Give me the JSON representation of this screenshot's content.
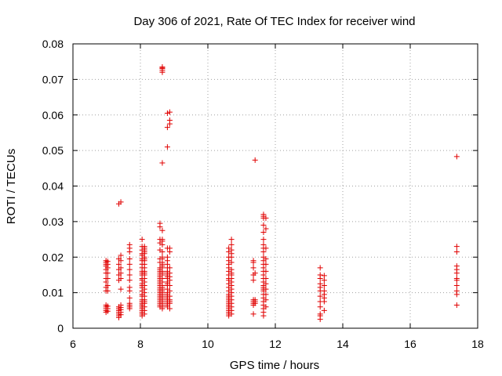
{
  "chart_data": {
    "type": "scatter",
    "title": "Day 306 of 2021, Rate Of TEC Index for receiver wind",
    "xlabel": "GPS time / hours",
    "ylabel": "ROTI / TECUs",
    "xlim": [
      6,
      18
    ],
    "ylim": [
      0,
      0.08
    ],
    "xticks": [
      6,
      8,
      10,
      12,
      14,
      16,
      18
    ],
    "yticks": [
      0,
      0.01,
      0.02,
      0.03,
      0.04,
      0.05,
      0.06,
      0.07,
      0.08
    ],
    "xtick_labels": [
      "6",
      "8",
      "10",
      "12",
      "14",
      "16",
      "18"
    ],
    "ytick_labels": [
      "0",
      "0.01",
      "0.02",
      "0.03",
      "0.04",
      "0.05",
      "0.06",
      "0.07",
      "0.08"
    ],
    "grid": true,
    "marker": "+",
    "color": "#e00000",
    "series": [
      {
        "x": [
          6.98,
          6.98,
          6.98,
          6.98,
          6.98,
          6.98,
          6.98,
          6.98,
          6.98,
          6.98,
          6.98,
          6.98,
          6.98,
          6.98,
          6.98,
          7.03,
          7.03,
          7.03,
          7.03,
          7.03,
          7.03,
          7.03,
          7.03,
          7.03,
          7.03,
          7.36,
          7.36,
          7.36,
          7.36,
          7.36,
          7.36,
          7.36,
          7.36,
          7.36,
          7.36,
          7.36,
          7.36,
          7.36,
          7.42,
          7.42,
          7.42,
          7.42,
          7.42,
          7.42,
          7.42,
          7.42,
          7.42,
          7.42,
          7.42,
          7.42,
          7.68,
          7.68,
          7.68,
          7.68,
          7.68,
          7.68,
          7.68,
          7.68,
          7.68,
          7.68,
          7.68,
          7.68,
          7.68,
          7.68,
          7.68,
          8.05,
          8.05,
          8.05,
          8.05,
          8.05,
          8.05,
          8.05,
          8.05,
          8.05,
          8.05,
          8.05,
          8.05,
          8.05,
          8.05,
          8.05,
          8.05,
          8.05,
          8.05,
          8.05,
          8.05,
          8.05,
          8.05,
          8.05,
          8.05,
          8.05,
          8.05,
          8.05,
          8.05,
          8.05,
          8.05,
          8.12,
          8.12,
          8.12,
          8.12,
          8.12,
          8.12,
          8.12,
          8.12,
          8.12,
          8.12,
          8.12,
          8.12,
          8.12,
          8.12,
          8.12,
          8.12,
          8.12,
          8.12,
          8.12,
          8.12,
          8.12,
          8.12,
          8.12,
          8.12,
          8.12,
          8.58,
          8.58,
          8.58,
          8.58,
          8.58,
          8.58,
          8.58,
          8.58,
          8.58,
          8.58,
          8.58,
          8.58,
          8.58,
          8.58,
          8.58,
          8.58,
          8.58,
          8.58,
          8.58,
          8.58,
          8.58,
          8.58,
          8.58,
          8.58,
          8.58,
          8.58,
          8.58,
          8.58,
          8.58,
          8.58,
          8.65,
          8.65,
          8.65,
          8.65,
          8.65,
          8.65,
          8.65,
          8.65,
          8.65,
          8.65,
          8.65,
          8.65,
          8.65,
          8.65,
          8.65,
          8.65,
          8.65,
          8.65,
          8.65,
          8.65,
          8.65,
          8.65,
          8.65,
          8.65,
          8.65,
          8.65,
          8.65,
          8.65,
          8.65,
          8.65,
          8.65,
          8.65,
          8.65,
          8.65,
          8.65,
          8.65,
          8.8,
          8.8,
          8.8,
          8.8,
          8.8,
          8.8,
          8.8,
          8.8,
          8.8,
          8.8,
          8.8,
          8.8,
          8.8,
          8.8,
          8.8,
          8.8,
          8.8,
          8.8,
          8.8,
          8.8,
          8.8,
          8.8,
          8.8,
          8.8,
          8.8,
          8.8,
          8.87,
          8.87,
          8.87,
          8.87,
          8.87,
          8.87,
          8.87,
          8.87,
          8.87,
          8.87,
          8.87,
          8.87,
          8.87,
          8.87,
          8.87,
          8.87,
          10.62,
          10.62,
          10.62,
          10.62,
          10.62,
          10.62,
          10.62,
          10.62,
          10.62,
          10.62,
          10.62,
          10.62,
          10.62,
          10.62,
          10.62,
          10.62,
          10.62,
          10.62,
          10.62,
          10.62,
          10.62,
          10.62,
          10.62,
          10.62,
          10.62,
          10.62,
          10.7,
          10.7,
          10.7,
          10.7,
          10.7,
          10.7,
          10.7,
          10.7,
          10.7,
          10.7,
          10.7,
          10.7,
          10.7,
          10.7,
          10.7,
          10.7,
          10.7,
          10.7,
          10.7,
          10.7,
          11.35,
          11.35,
          11.35,
          11.35,
          11.35,
          11.35,
          11.35,
          11.35,
          11.35,
          11.35,
          11.4,
          11.4,
          11.4,
          11.4,
          11.4,
          11.65,
          11.65,
          11.65,
          11.65,
          11.65,
          11.65,
          11.65,
          11.65,
          11.65,
          11.65,
          11.65,
          11.65,
          11.65,
          11.65,
          11.65,
          11.65,
          11.65,
          11.65,
          11.65,
          11.65,
          11.65,
          11.65,
          11.65,
          11.65,
          11.65,
          11.65,
          11.65,
          11.65,
          11.72,
          11.72,
          11.72,
          11.72,
          11.72,
          11.72,
          11.72,
          11.72,
          11.72,
          11.72,
          11.72,
          11.72,
          13.33,
          13.33,
          13.33,
          13.33,
          13.33,
          13.33,
          13.33,
          13.33,
          13.33,
          13.33,
          13.33,
          13.33,
          13.45,
          13.45,
          13.45,
          13.45,
          13.45,
          13.45,
          13.45,
          13.45,
          17.38,
          17.38,
          17.38,
          17.38,
          17.38,
          17.38,
          17.38,
          17.38,
          17.38,
          17.38,
          17.38,
          17.38
        ],
        "y": [
          0.0045,
          0.005,
          0.0055,
          0.006,
          0.0065,
          0.0105,
          0.0115,
          0.013,
          0.014,
          0.0155,
          0.0165,
          0.0175,
          0.018,
          0.0185,
          0.019,
          0.0048,
          0.0055,
          0.0062,
          0.0105,
          0.012,
          0.014,
          0.0155,
          0.017,
          0.018,
          0.0188,
          0.003,
          0.0035,
          0.004,
          0.0045,
          0.005,
          0.0055,
          0.006,
          0.0135,
          0.015,
          0.0165,
          0.018,
          0.0195,
          0.035,
          0.0038,
          0.0045,
          0.0052,
          0.0058,
          0.0065,
          0.011,
          0.014,
          0.0155,
          0.017,
          0.019,
          0.0205,
          0.0355,
          0.0055,
          0.006,
          0.0065,
          0.007,
          0.0085,
          0.0105,
          0.0115,
          0.0135,
          0.015,
          0.0165,
          0.018,
          0.0195,
          0.0215,
          0.0225,
          0.0235,
          0.0035,
          0.004,
          0.0045,
          0.005,
          0.0055,
          0.006,
          0.0065,
          0.007,
          0.0075,
          0.008,
          0.009,
          0.0095,
          0.0105,
          0.0115,
          0.012,
          0.0125,
          0.0135,
          0.014,
          0.015,
          0.0155,
          0.016,
          0.017,
          0.018,
          0.019,
          0.0195,
          0.0205,
          0.021,
          0.022,
          0.023,
          0.025,
          0.004,
          0.005,
          0.006,
          0.007,
          0.0075,
          0.008,
          0.009,
          0.01,
          0.011,
          0.012,
          0.013,
          0.014,
          0.015,
          0.0155,
          0.016,
          0.017,
          0.018,
          0.019,
          0.0195,
          0.02,
          0.021,
          0.0215,
          0.022,
          0.0225,
          0.023,
          0.006,
          0.0065,
          0.007,
          0.0075,
          0.008,
          0.0085,
          0.009,
          0.0095,
          0.01,
          0.0105,
          0.011,
          0.0115,
          0.012,
          0.0125,
          0.013,
          0.0135,
          0.014,
          0.0145,
          0.015,
          0.0155,
          0.016,
          0.0165,
          0.017,
          0.0185,
          0.0195,
          0.022,
          0.024,
          0.025,
          0.0285,
          0.0295,
          0.0055,
          0.006,
          0.0065,
          0.007,
          0.0075,
          0.008,
          0.0085,
          0.009,
          0.0095,
          0.01,
          0.0105,
          0.011,
          0.0115,
          0.012,
          0.013,
          0.014,
          0.015,
          0.0155,
          0.016,
          0.017,
          0.0175,
          0.018,
          0.0185,
          0.0195,
          0.02,
          0.0215,
          0.0235,
          0.0245,
          0.025,
          0.0275,
          0.0465,
          0.072,
          0.0725,
          0.073,
          0.0732,
          0.0735,
          0.006,
          0.0065,
          0.007,
          0.0075,
          0.008,
          0.0085,
          0.009,
          0.0095,
          0.01,
          0.011,
          0.012,
          0.0125,
          0.013,
          0.014,
          0.0145,
          0.015,
          0.0155,
          0.016,
          0.017,
          0.018,
          0.019,
          0.02,
          0.0225,
          0.051,
          0.0565,
          0.0605,
          0.0055,
          0.007,
          0.0075,
          0.008,
          0.009,
          0.0105,
          0.012,
          0.0135,
          0.0145,
          0.0155,
          0.017,
          0.0215,
          0.0225,
          0.0575,
          0.0585,
          0.0608,
          0.0035,
          0.004,
          0.0045,
          0.005,
          0.0055,
          0.006,
          0.0065,
          0.007,
          0.0075,
          0.008,
          0.0085,
          0.009,
          0.0095,
          0.0105,
          0.0115,
          0.0125,
          0.0135,
          0.014,
          0.015,
          0.016,
          0.017,
          0.018,
          0.019,
          0.02,
          0.0215,
          0.0225,
          0.004,
          0.005,
          0.006,
          0.007,
          0.008,
          0.009,
          0.01,
          0.011,
          0.012,
          0.013,
          0.014,
          0.015,
          0.0155,
          0.0165,
          0.0185,
          0.02,
          0.021,
          0.022,
          0.0235,
          0.025,
          0.004,
          0.0065,
          0.007,
          0.0075,
          0.008,
          0.0135,
          0.015,
          0.017,
          0.0185,
          0.019,
          0.007,
          0.0075,
          0.008,
          0.0155,
          0.0473,
          0.0035,
          0.0045,
          0.0055,
          0.0065,
          0.0075,
          0.0085,
          0.0095,
          0.0105,
          0.011,
          0.0115,
          0.012,
          0.013,
          0.014,
          0.015,
          0.016,
          0.017,
          0.018,
          0.019,
          0.02,
          0.0215,
          0.0225,
          0.0235,
          0.025,
          0.027,
          0.029,
          0.031,
          0.0315,
          0.032,
          0.006,
          0.008,
          0.0095,
          0.011,
          0.0125,
          0.014,
          0.016,
          0.018,
          0.0195,
          0.0225,
          0.028,
          0.031,
          0.0025,
          0.0035,
          0.004,
          0.006,
          0.0075,
          0.009,
          0.0105,
          0.0115,
          0.0125,
          0.014,
          0.015,
          0.017,
          0.005,
          0.0075,
          0.0085,
          0.0095,
          0.0105,
          0.012,
          0.0135,
          0.0148,
          0.0065,
          0.0095,
          0.0105,
          0.012,
          0.0135,
          0.014,
          0.0155,
          0.0165,
          0.0175,
          0.0215,
          0.023,
          0.0483
        ]
      }
    ]
  }
}
